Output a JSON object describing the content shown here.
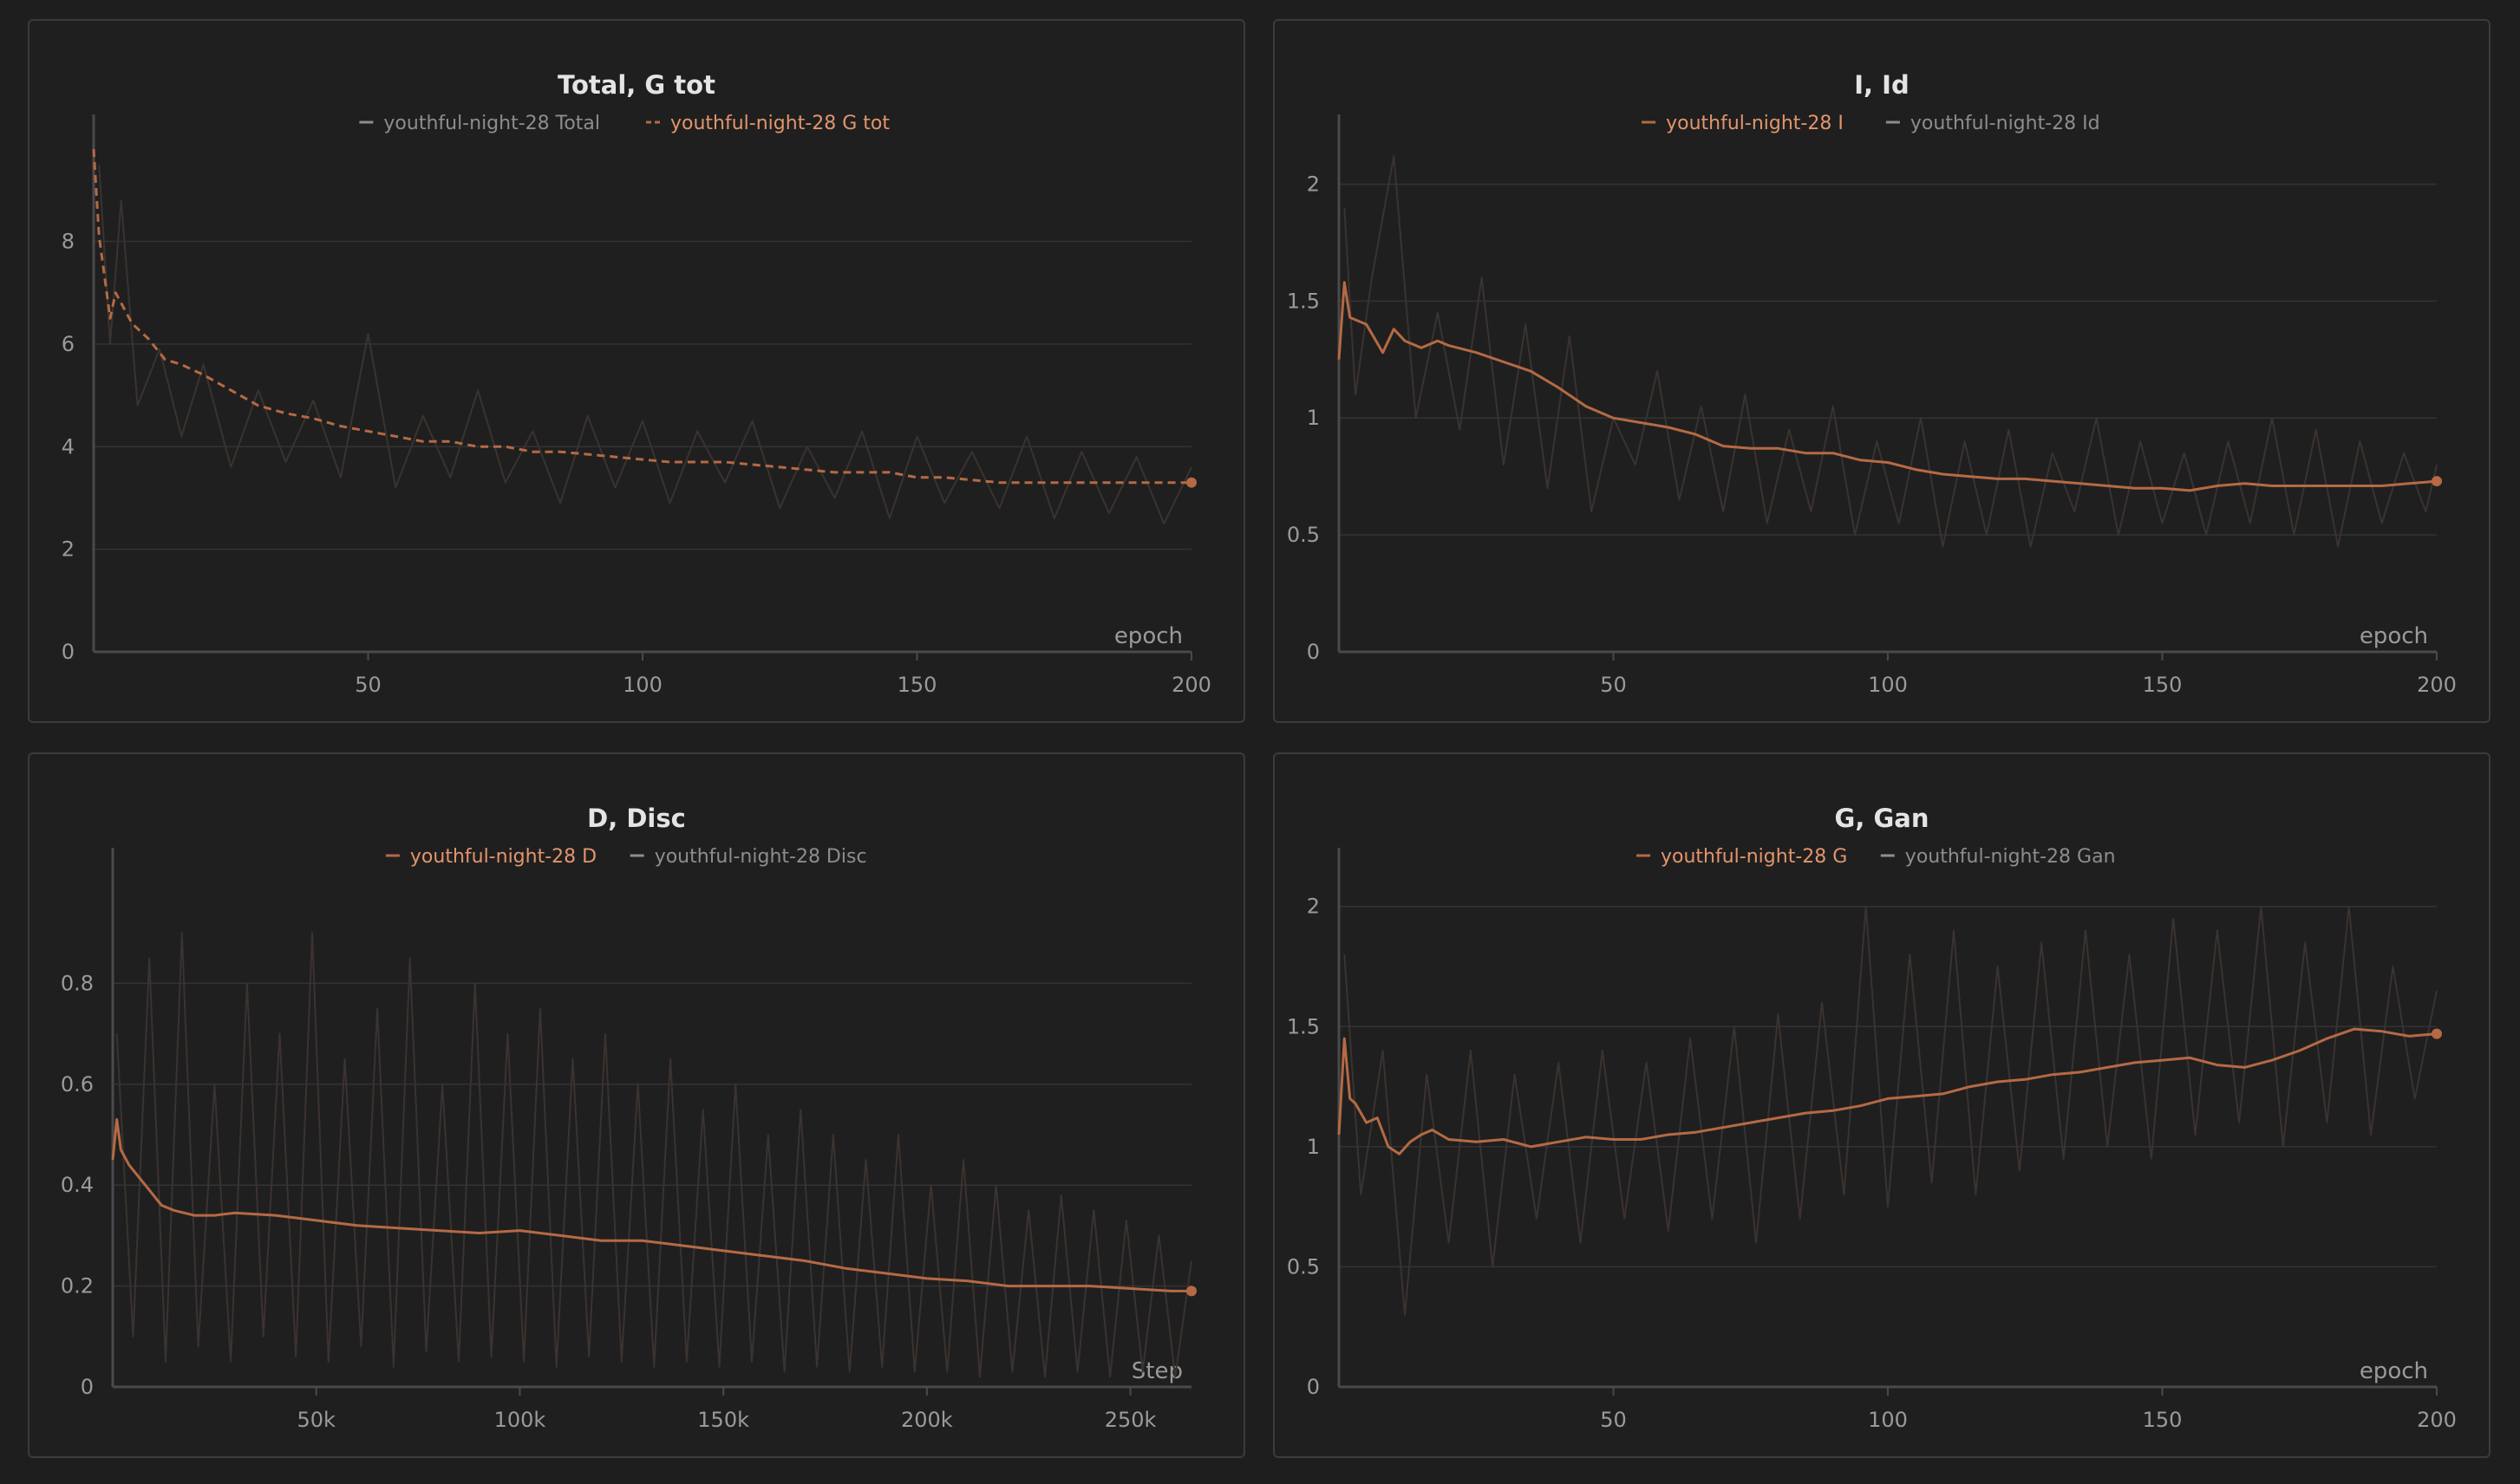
{
  "colors": {
    "background": "#1e1e1f",
    "panel": "#1f1f20",
    "accent": "#b56a43",
    "accent_light": "#e2956a",
    "muted_text": "#8d8d8d",
    "raw_line": "#3a332f",
    "gridline": "#333335",
    "axis": "#4a4a4d"
  },
  "chart_data": [
    {
      "type": "line",
      "title": "Total, G tot",
      "xlabel": "epoch",
      "ylabel": "",
      "xlim": [
        0,
        200
      ],
      "ylim": [
        0,
        9.8
      ],
      "x_ticks": [
        50,
        100,
        150,
        200
      ],
      "y_ticks": [
        0,
        2,
        4,
        6,
        8
      ],
      "x_tick_labels": [
        "50",
        "100",
        "150",
        "200"
      ],
      "y_tick_labels": [
        "0",
        "2",
        "4",
        "6",
        "8"
      ],
      "legend_position": "top-center",
      "grid": true,
      "series": [
        {
          "name": "youthful-night-28 Total",
          "style": "raw-noisy",
          "legend_active": false,
          "x": [
            1,
            3,
            5,
            8,
            12,
            16,
            20,
            25,
            30,
            35,
            40,
            45,
            50,
            55,
            60,
            65,
            70,
            75,
            80,
            85,
            90,
            95,
            100,
            105,
            110,
            115,
            120,
            125,
            130,
            135,
            140,
            145,
            150,
            155,
            160,
            165,
            170,
            175,
            180,
            185,
            190,
            195,
            200
          ],
          "values": [
            9.5,
            6.0,
            8.8,
            4.8,
            5.9,
            4.2,
            5.6,
            3.6,
            5.1,
            3.7,
            4.9,
            3.4,
            6.2,
            3.2,
            4.6,
            3.4,
            5.1,
            3.3,
            4.3,
            2.9,
            4.6,
            3.2,
            4.5,
            2.9,
            4.3,
            3.3,
            4.5,
            2.8,
            4.0,
            3.0,
            4.3,
            2.6,
            4.2,
            2.9,
            3.9,
            2.8,
            4.2,
            2.6,
            3.9,
            2.7,
            3.8,
            2.5,
            3.6
          ]
        },
        {
          "name": "youthful-night-28 G tot",
          "style": "dashed-smoothed",
          "legend_active": true,
          "x": [
            0,
            1,
            2,
            3,
            4,
            5,
            7,
            10,
            13,
            16,
            20,
            25,
            30,
            35,
            40,
            45,
            50,
            55,
            60,
            65,
            70,
            75,
            80,
            85,
            90,
            95,
            100,
            105,
            110,
            115,
            120,
            125,
            130,
            135,
            140,
            145,
            150,
            155,
            160,
            165,
            170,
            175,
            180,
            185,
            190,
            195,
            200
          ],
          "values": [
            9.8,
            8.1,
            7.3,
            6.5,
            7.0,
            6.8,
            6.4,
            6.1,
            5.7,
            5.6,
            5.4,
            5.1,
            4.8,
            4.65,
            4.55,
            4.4,
            4.3,
            4.2,
            4.1,
            4.1,
            4.0,
            4.0,
            3.9,
            3.9,
            3.85,
            3.8,
            3.75,
            3.7,
            3.7,
            3.7,
            3.65,
            3.6,
            3.55,
            3.5,
            3.5,
            3.5,
            3.4,
            3.4,
            3.35,
            3.3,
            3.3,
            3.3,
            3.3,
            3.3,
            3.3,
            3.3,
            3.3
          ]
        }
      ]
    },
    {
      "type": "line",
      "title": "I, Id",
      "xlabel": "epoch",
      "ylabel": "",
      "xlim": [
        0,
        200
      ],
      "ylim": [
        0,
        2.15
      ],
      "x_ticks": [
        50,
        100,
        150,
        200
      ],
      "y_ticks": [
        0,
        0.5,
        1,
        1.5,
        2
      ],
      "x_tick_labels": [
        "50",
        "100",
        "150",
        "200"
      ],
      "y_tick_labels": [
        "0",
        "0.5",
        "1",
        "1.5",
        "2"
      ],
      "legend_position": "top-center",
      "grid": true,
      "series": [
        {
          "name": "youthful-night-28 I",
          "style": "solid-smoothed",
          "legend_active": true,
          "x": [
            0,
            1,
            2,
            3,
            5,
            8,
            10,
            12,
            15,
            18,
            20,
            25,
            30,
            35,
            40,
            45,
            50,
            55,
            60,
            65,
            70,
            75,
            80,
            85,
            90,
            95,
            100,
            105,
            110,
            115,
            120,
            125,
            130,
            135,
            140,
            145,
            150,
            155,
            160,
            165,
            170,
            175,
            180,
            185,
            190,
            195,
            200
          ],
          "values": [
            1.25,
            1.58,
            1.43,
            1.42,
            1.4,
            1.28,
            1.38,
            1.33,
            1.3,
            1.33,
            1.31,
            1.28,
            1.24,
            1.2,
            1.13,
            1.05,
            1.0,
            0.98,
            0.96,
            0.93,
            0.88,
            0.87,
            0.87,
            0.85,
            0.85,
            0.82,
            0.81,
            0.78,
            0.76,
            0.75,
            0.74,
            0.74,
            0.73,
            0.72,
            0.71,
            0.7,
            0.7,
            0.69,
            0.71,
            0.72,
            0.71,
            0.71,
            0.71,
            0.71,
            0.71,
            0.72,
            0.73
          ]
        },
        {
          "name": "youthful-night-28 Id",
          "style": "raw-noisy",
          "legend_active": false,
          "x": [
            1,
            3,
            6,
            10,
            14,
            18,
            22,
            26,
            30,
            34,
            38,
            42,
            46,
            50,
            54,
            58,
            62,
            66,
            70,
            74,
            78,
            82,
            86,
            90,
            94,
            98,
            102,
            106,
            110,
            114,
            118,
            122,
            126,
            130,
            134,
            138,
            142,
            146,
            150,
            154,
            158,
            162,
            166,
            170,
            174,
            178,
            182,
            186,
            190,
            194,
            198,
            200
          ],
          "values": [
            1.9,
            1.1,
            1.6,
            2.12,
            1.0,
            1.45,
            0.95,
            1.6,
            0.8,
            1.4,
            0.7,
            1.35,
            0.6,
            1.0,
            0.8,
            1.2,
            0.65,
            1.05,
            0.6,
            1.1,
            0.55,
            0.95,
            0.6,
            1.05,
            0.5,
            0.9,
            0.55,
            1.0,
            0.45,
            0.9,
            0.5,
            0.95,
            0.45,
            0.85,
            0.6,
            1.0,
            0.5,
            0.9,
            0.55,
            0.85,
            0.5,
            0.9,
            0.55,
            1.0,
            0.5,
            0.95,
            0.45,
            0.9,
            0.55,
            0.85,
            0.6,
            0.8
          ]
        }
      ]
    },
    {
      "type": "line",
      "title": "D, Disc",
      "xlabel": "Step",
      "ylabel": "",
      "xlim": [
        0,
        265000
      ],
      "ylim": [
        0,
        1.0
      ],
      "x_ticks": [
        50000,
        100000,
        150000,
        200000,
        250000
      ],
      "y_ticks": [
        0,
        0.2,
        0.4,
        0.6,
        0.8
      ],
      "x_tick_labels": [
        "50k",
        "100k",
        "150k",
        "200k",
        "250k"
      ],
      "y_tick_labels": [
        "0",
        "0.2",
        "0.4",
        "0.6",
        "0.8"
      ],
      "legend_position": "top-center",
      "grid": true,
      "series": [
        {
          "name": "youthful-night-28 D",
          "style": "solid-smoothed",
          "legend_active": true,
          "x": [
            0,
            1000,
            2000,
            4000,
            6000,
            8000,
            10000,
            12000,
            15000,
            20000,
            25000,
            30000,
            40000,
            50000,
            60000,
            70000,
            80000,
            90000,
            100000,
            110000,
            120000,
            130000,
            140000,
            150000,
            160000,
            170000,
            180000,
            190000,
            200000,
            210000,
            220000,
            230000,
            240000,
            250000,
            260000,
            265000
          ],
          "values": [
            0.45,
            0.53,
            0.47,
            0.44,
            0.42,
            0.4,
            0.38,
            0.36,
            0.35,
            0.34,
            0.34,
            0.345,
            0.34,
            0.33,
            0.32,
            0.315,
            0.31,
            0.305,
            0.31,
            0.3,
            0.29,
            0.29,
            0.28,
            0.27,
            0.26,
            0.25,
            0.235,
            0.225,
            0.215,
            0.21,
            0.2,
            0.2,
            0.2,
            0.195,
            0.19,
            0.19
          ]
        },
        {
          "name": "youthful-night-28 Disc",
          "style": "raw-noisy",
          "legend_active": false,
          "x": [
            1000,
            5000,
            9000,
            13000,
            17000,
            21000,
            25000,
            29000,
            33000,
            37000,
            41000,
            45000,
            49000,
            53000,
            57000,
            61000,
            65000,
            69000,
            73000,
            77000,
            81000,
            85000,
            89000,
            93000,
            97000,
            101000,
            105000,
            109000,
            113000,
            117000,
            121000,
            125000,
            129000,
            133000,
            137000,
            141000,
            145000,
            149000,
            153000,
            157000,
            161000,
            165000,
            169000,
            173000,
            177000,
            181000,
            185000,
            189000,
            193000,
            197000,
            201000,
            205000,
            209000,
            213000,
            217000,
            221000,
            225000,
            229000,
            233000,
            237000,
            241000,
            245000,
            249000,
            253000,
            257000,
            261000,
            265000
          ],
          "values": [
            0.7,
            0.1,
            0.85,
            0.05,
            0.9,
            0.08,
            0.6,
            0.05,
            0.8,
            0.1,
            0.7,
            0.06,
            0.9,
            0.05,
            0.65,
            0.08,
            0.75,
            0.04,
            0.85,
            0.07,
            0.6,
            0.05,
            0.8,
            0.06,
            0.7,
            0.05,
            0.75,
            0.04,
            0.65,
            0.06,
            0.7,
            0.05,
            0.6,
            0.04,
            0.65,
            0.05,
            0.55,
            0.04,
            0.6,
            0.05,
            0.5,
            0.03,
            0.55,
            0.04,
            0.5,
            0.03,
            0.45,
            0.04,
            0.5,
            0.03,
            0.4,
            0.03,
            0.45,
            0.02,
            0.4,
            0.03,
            0.35,
            0.02,
            0.38,
            0.03,
            0.35,
            0.02,
            0.33,
            0.03,
            0.3,
            0.02,
            0.25
          ]
        }
      ]
    },
    {
      "type": "line",
      "title": "G, Gan",
      "xlabel": "epoch",
      "ylabel": "",
      "xlim": [
        0,
        200
      ],
      "ylim": [
        0,
        2.1
      ],
      "x_ticks": [
        50,
        100,
        150,
        200
      ],
      "y_ticks": [
        0,
        0.5,
        1,
        1.5,
        2
      ],
      "x_tick_labels": [
        "50",
        "100",
        "150",
        "200"
      ],
      "y_tick_labels": [
        "0",
        "0.5",
        "1",
        "1.5",
        "2"
      ],
      "legend_position": "top-center",
      "grid": true,
      "series": [
        {
          "name": "youthful-night-28 G",
          "style": "solid-smoothed",
          "legend_active": true,
          "x": [
            0,
            1,
            2,
            3,
            5,
            7,
            9,
            11,
            13,
            15,
            17,
            20,
            25,
            30,
            35,
            40,
            45,
            50,
            55,
            60,
            65,
            70,
            75,
            80,
            85,
            90,
            95,
            100,
            105,
            110,
            115,
            120,
            125,
            130,
            135,
            140,
            145,
            150,
            155,
            160,
            165,
            170,
            175,
            180,
            185,
            190,
            195,
            200
          ],
          "values": [
            1.05,
            1.45,
            1.2,
            1.18,
            1.1,
            1.12,
            1.0,
            0.97,
            1.02,
            1.05,
            1.07,
            1.03,
            1.02,
            1.03,
            1.0,
            1.02,
            1.04,
            1.03,
            1.03,
            1.05,
            1.06,
            1.08,
            1.1,
            1.12,
            1.14,
            1.15,
            1.17,
            1.2,
            1.21,
            1.22,
            1.25,
            1.27,
            1.28,
            1.3,
            1.31,
            1.33,
            1.35,
            1.36,
            1.37,
            1.34,
            1.33,
            1.36,
            1.4,
            1.45,
            1.49,
            1.48,
            1.46,
            1.47
          ]
        },
        {
          "name": "youthful-night-28 Gan",
          "style": "raw-noisy",
          "legend_active": false,
          "x": [
            1,
            4,
            8,
            12,
            16,
            20,
            24,
            28,
            32,
            36,
            40,
            44,
            48,
            52,
            56,
            60,
            64,
            68,
            72,
            76,
            80,
            84,
            88,
            92,
            96,
            100,
            104,
            108,
            112,
            116,
            120,
            124,
            128,
            132,
            136,
            140,
            144,
            148,
            152,
            156,
            160,
            164,
            168,
            172,
            176,
            180,
            184,
            188,
            192,
            196,
            200
          ],
          "values": [
            1.8,
            0.8,
            1.4,
            0.3,
            1.3,
            0.6,
            1.4,
            0.5,
            1.3,
            0.7,
            1.35,
            0.6,
            1.4,
            0.7,
            1.35,
            0.65,
            1.45,
            0.7,
            1.5,
            0.6,
            1.55,
            0.7,
            1.6,
            0.8,
            2.0,
            0.75,
            1.8,
            0.85,
            1.9,
            0.8,
            1.75,
            0.9,
            1.85,
            0.95,
            1.9,
            1.0,
            1.8,
            0.95,
            1.95,
            1.05,
            1.9,
            1.1,
            2.0,
            1.0,
            1.85,
            1.1,
            2.0,
            1.05,
            1.75,
            1.2,
            1.65
          ]
        }
      ]
    }
  ]
}
